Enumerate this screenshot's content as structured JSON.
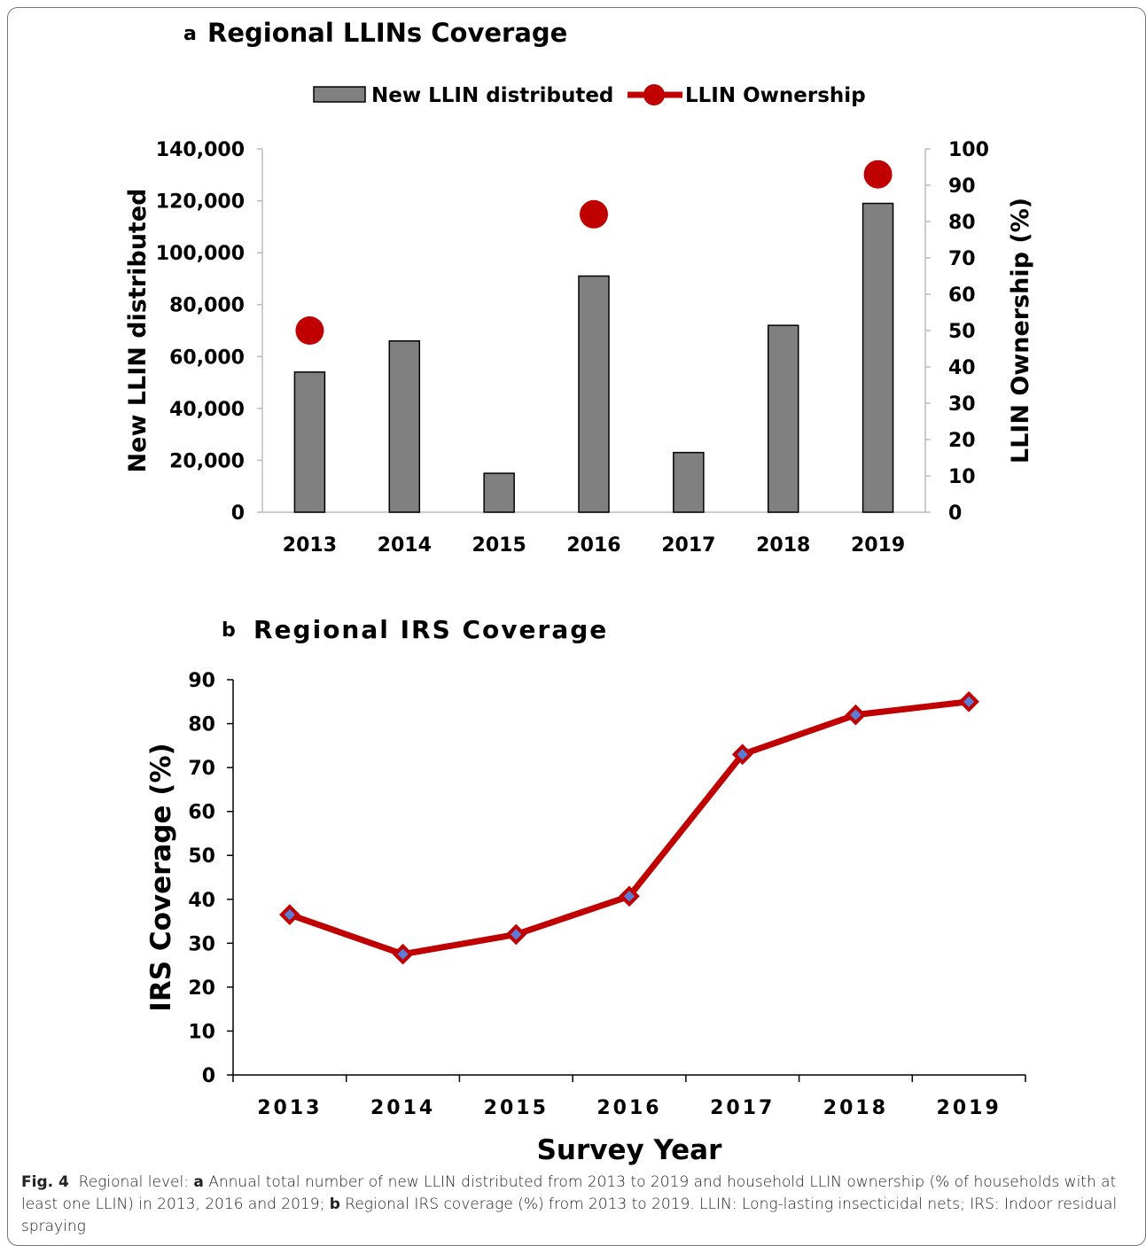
{
  "chart_data": [
    {
      "panel": "a",
      "type": "bar",
      "title": "Regional LLINs Coverage",
      "categories": [
        "2013",
        "2014",
        "2015",
        "2016",
        "2017",
        "2018",
        "2019"
      ],
      "series": [
        {
          "name": "New LLIN distributed",
          "type": "bar",
          "axis": "left",
          "color": "#808080",
          "values": [
            54000,
            66000,
            15000,
            91000,
            23000,
            72000,
            119000
          ]
        },
        {
          "name": "LLIN Ownership",
          "type": "dot",
          "axis": "right",
          "color": "#c00000",
          "values": [
            50,
            null,
            null,
            82,
            null,
            null,
            93
          ]
        }
      ],
      "ylabel": "New LLIN distributed",
      "y2label": "LLIN Ownership (%)",
      "ylim": [
        0,
        140000
      ],
      "y2lim": [
        0,
        100
      ],
      "yticks": [
        "0",
        "20,000",
        "40,000",
        "60,000",
        "80,000",
        "100,000",
        "120,000",
        "140,000"
      ],
      "y2ticks": [
        "0",
        "10",
        "20",
        "30",
        "40",
        "50",
        "60",
        "70",
        "80",
        "90",
        "100"
      ],
      "legend": "top",
      "grid": false
    },
    {
      "panel": "b",
      "type": "line",
      "title": "Regional IRS Coverage",
      "categories": [
        "2013",
        "2014",
        "2015",
        "2016",
        "2017",
        "2018",
        "2019"
      ],
      "series": [
        {
          "color": "#c00000",
          "marker_color": "#5b7bd5",
          "values": [
            36.5,
            27.5,
            32,
            40.7,
            73,
            82,
            85
          ]
        }
      ],
      "xlabel": "Survey Year",
      "ylabel": "IRS Coverage (%)",
      "ylim": [
        0,
        90
      ],
      "yticks": [
        "0",
        "10",
        "20",
        "30",
        "40",
        "50",
        "60",
        "70",
        "80",
        "90"
      ],
      "grid": false
    }
  ],
  "caption": {
    "label": "Fig. 4",
    "lead": "Regional level: ",
    "a_letter": "a",
    "a_text": " Annual total number of new LLIN distributed from 2013 to 2019 and household LLIN ownership (% of households with at least one LLIN) in 2013, 2016 and 2019; ",
    "b_letter": "b",
    "b_text": " Regional IRS coverage (%) from 2013 to 2019. LLIN: Long-lasting insecticidal nets; IRS: Indoor residual spraying"
  }
}
